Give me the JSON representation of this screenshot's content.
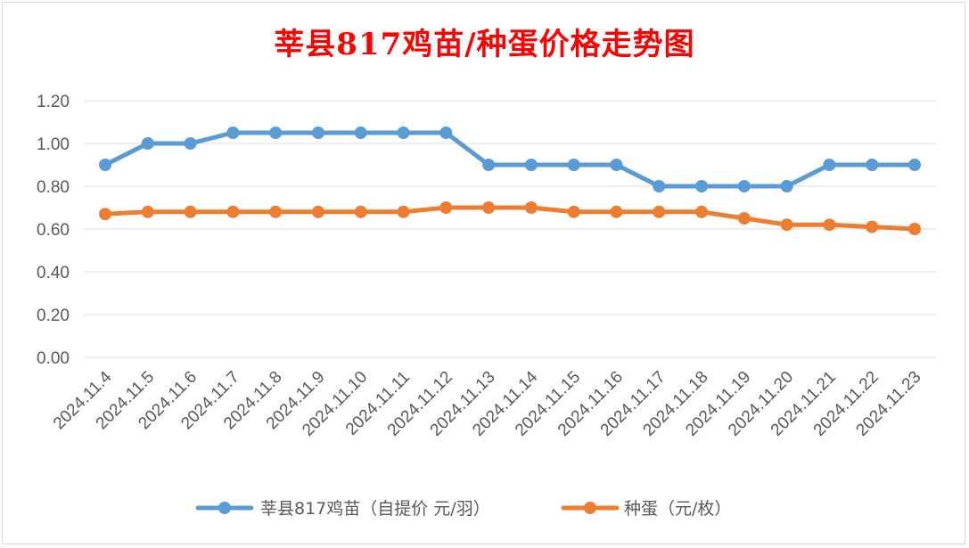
{
  "chart_data": {
    "type": "line",
    "title": "莘县817鸡苗/种蛋价格走势图",
    "xlabel": "",
    "ylabel": "",
    "ylim": [
      0,
      1.2
    ],
    "yticks": [
      "0.00",
      "0.20",
      "0.40",
      "0.60",
      "0.80",
      "1.00",
      "1.20"
    ],
    "categories": [
      "2024.11.4",
      "2024.11.5",
      "2024.11.6",
      "2024.11.7",
      "2024.11.8",
      "2024.11.9",
      "2024.11.10",
      "2024.11.11",
      "2024.11.12",
      "2024.11.13",
      "2024.11.14",
      "2024.11.15",
      "2024.11.16",
      "2024.11.17",
      "2024.11.18",
      "2024.11.19",
      "2024.11.20",
      "2024.11.21",
      "2024.11.22",
      "2024.11.23"
    ],
    "grid": true,
    "legend_position": "bottom",
    "series": [
      {
        "name": "莘县817鸡苗（自提价 元/羽）",
        "color": "#5b9bd5",
        "values": [
          0.9,
          1.0,
          1.0,
          1.05,
          1.05,
          1.05,
          1.05,
          1.05,
          1.05,
          0.9,
          0.9,
          0.9,
          0.9,
          0.8,
          0.8,
          0.8,
          0.8,
          0.9,
          0.9,
          0.9
        ]
      },
      {
        "name": "种蛋（元/枚）",
        "color": "#ed7d31",
        "values": [
          0.67,
          0.68,
          0.68,
          0.68,
          0.68,
          0.68,
          0.68,
          0.68,
          0.7,
          0.7,
          0.7,
          0.68,
          0.68,
          0.68,
          0.68,
          0.65,
          0.62,
          0.62,
          0.61,
          0.6
        ]
      }
    ]
  }
}
